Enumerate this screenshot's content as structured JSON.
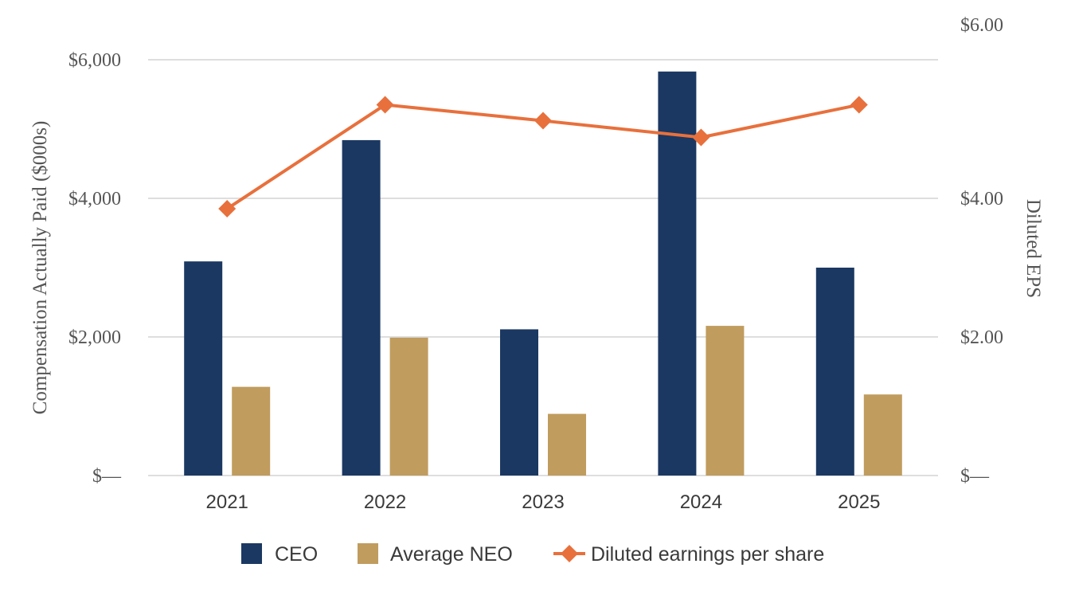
{
  "chart_data": {
    "type": "bar",
    "title": "",
    "categories": [
      "2021",
      "2022",
      "2023",
      "2024",
      "2025"
    ],
    "series": [
      {
        "name": "CEO",
        "axis": "left",
        "kind": "bar",
        "color": "#1b3862",
        "values": [
          3090,
          4840,
          2110,
          5830,
          3000
        ]
      },
      {
        "name": "Average NEO",
        "axis": "left",
        "kind": "bar",
        "color": "#c09c5e",
        "values": [
          1280,
          1990,
          890,
          2160,
          1170
        ]
      },
      {
        "name": "Diluted earnings per share",
        "axis": "right",
        "kind": "line",
        "marker": "diamond",
        "color": "#e8703c",
        "values": [
          3.85,
          5.35,
          5.12,
          4.88,
          5.35
        ]
      }
    ],
    "ylabel": "Compensation Actually Paid ($000s)",
    "ylim": [
      0,
      6000
    ],
    "yticks": [
      0,
      2000,
      4000,
      6000
    ],
    "ytick_labels": [
      "$—",
      "$2,000",
      "$4,000",
      "$6,000"
    ],
    "y2label": "Diluted EPS",
    "y2lim": [
      0,
      6
    ],
    "y2ticks": [
      0,
      2,
      4,
      6
    ],
    "y2tick_labels": [
      "$—",
      "$2.00",
      "$4.00",
      "$6.00"
    ],
    "grid": true,
    "legend_position": "bottom-center"
  }
}
